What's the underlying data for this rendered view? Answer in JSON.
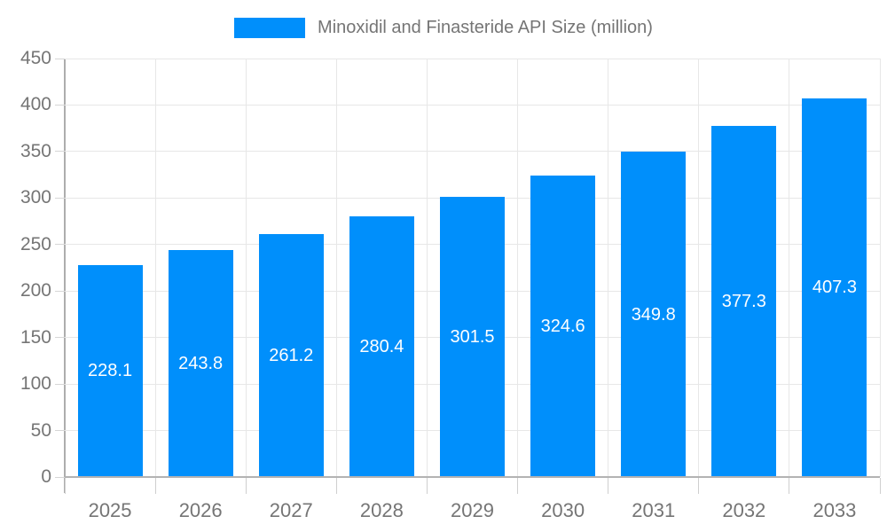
{
  "chart_data": {
    "type": "bar",
    "title": "Minoxidil and Finasteride API Size (million)",
    "categories": [
      "2025",
      "2026",
      "2027",
      "2028",
      "2029",
      "2030",
      "2031",
      "2032",
      "2033"
    ],
    "values": [
      228.1,
      243.8,
      261.2,
      280.4,
      301.5,
      324.6,
      349.8,
      377.3,
      407.3
    ],
    "value_label_decimals": 1,
    "ylim": [
      0,
      450
    ],
    "ytick_step": 50,
    "grid": true,
    "legend_position": "top",
    "colors": {
      "bar": "#008FFB",
      "value_label": "#ffffff",
      "axis_text": "#757575",
      "gridline": "#e7e7e7",
      "axis_line": "#b3b3b3"
    }
  },
  "legend": {
    "label": "Minoxidil and Finasteride API Size (million)"
  }
}
